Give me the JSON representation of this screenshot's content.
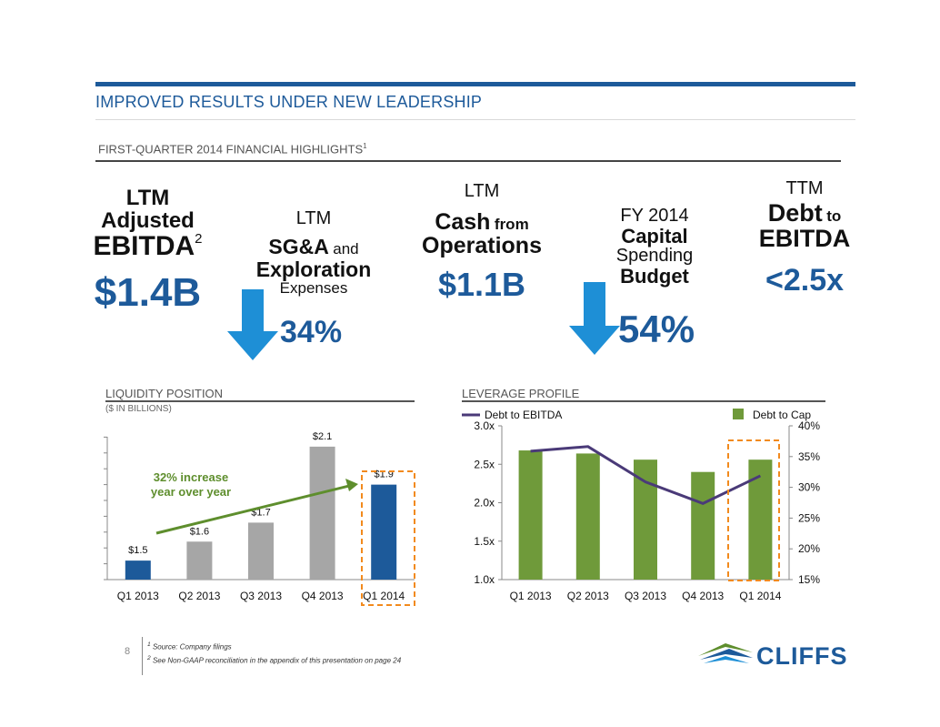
{
  "header": {
    "title": "IMPROVED RESULTS UNDER NEW LEADERSHIP",
    "subtitle": "FIRST-QUARTER 2014 FINANCIAL HIGHLIGHTS",
    "subtitle_sup": "1"
  },
  "highlights": {
    "ebitda": {
      "l1": "LTM",
      "l2": "Adjusted",
      "l3": "EBITDA",
      "sup": "2",
      "value": "$1.4B"
    },
    "sga": {
      "l1": "LTM",
      "l2a": "SG&A",
      "l2b": "and",
      "l3": "Exploration",
      "l4": "Expenses",
      "value": "34%"
    },
    "cash": {
      "l1": "LTM",
      "l2a": "Cash",
      "l2b": "from",
      "l3": "Operations",
      "value": "$1.1B"
    },
    "capex": {
      "l1": "FY 2014",
      "l2": "Capital",
      "l3": "Spending",
      "l4": "Budget",
      "value": "54%"
    },
    "debt": {
      "l1": "TTM",
      "l2a": "Debt",
      "l2b": "to",
      "l3": "EBITDA",
      "value": "<2.5x"
    }
  },
  "liquidity": {
    "heading": "LIQUIDITY POSITION",
    "units": "($ IN BILLIONS)",
    "annotation_l1": "32% increase",
    "annotation_l2": "year over year"
  },
  "leverage": {
    "heading": "LEVERAGE PROFILE",
    "legend_line": "Debt to EBITDA",
    "legend_bar": "Debt to Cap"
  },
  "chart_data": [
    {
      "type": "bar",
      "categories": [
        "Q1 2013",
        "Q2 2013",
        "Q3 2013",
        "Q4 2013",
        "Q1 2014"
      ],
      "values": [
        1.5,
        1.6,
        1.7,
        2.1,
        1.9
      ],
      "data_labels": [
        "$1.5",
        "$1.6",
        "$1.7",
        "$2.1",
        "$1.9"
      ],
      "ylim": [
        1.4,
        2.2
      ],
      "highlight": "Q1 2014",
      "colors": {
        "primary": "#1d5a9a",
        "secondary": "#a6a6a6",
        "annotation": "#5e8e2d",
        "highlight_box": "#f28a1d"
      }
    },
    {
      "type": "bar",
      "categories": [
        "Q1 2013",
        "Q2 2013",
        "Q3 2013",
        "Q4 2013",
        "Q1 2014"
      ],
      "series": [
        {
          "name": "Debt to Cap",
          "type": "bar",
          "axis": "right",
          "values": [
            36,
            35.5,
            34.5,
            32.5,
            34.5
          ],
          "color": "#6f9a3a"
        },
        {
          "name": "Debt to EBITDA",
          "type": "line",
          "axis": "left",
          "values": [
            2.67,
            2.73,
            2.27,
            1.99,
            2.35
          ],
          "color": "#4a3a78"
        }
      ],
      "left_ticks": [
        "1.0x",
        "1.5x",
        "2.0x",
        "2.5x",
        "3.0x"
      ],
      "left_range": [
        1.0,
        3.0
      ],
      "right_ticks": [
        "15%",
        "20%",
        "25%",
        "30%",
        "35%",
        "40%"
      ],
      "right_range": [
        15,
        40
      ],
      "highlight": "Q1 2014"
    }
  ],
  "footer": {
    "page": "8",
    "note1_sup": "1",
    "note1": "Source: Company filings",
    "note2_sup": "2",
    "note2": "See Non-GAAP reconciliation in the appendix of this presentation on page 24",
    "logo_text": "CLIFFS"
  },
  "colors": {
    "brand_blue": "#1d5a9a",
    "arrow_blue": "#1e8fd6",
    "logo_green": "#5e8e2d"
  }
}
